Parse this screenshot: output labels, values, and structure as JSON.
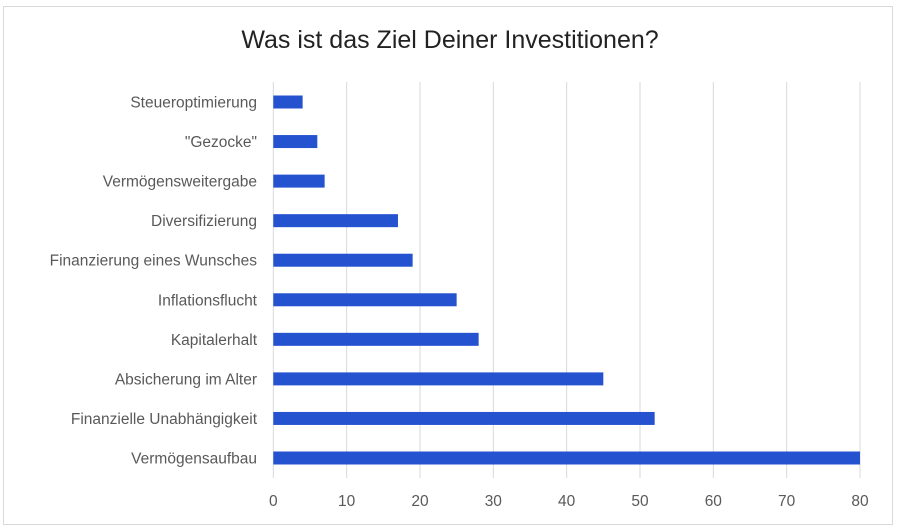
{
  "chart_data": {
    "type": "bar",
    "orientation": "horizontal",
    "title": "Was ist das Ziel Deiner Investitionen?",
    "categories": [
      "Steueroptimierung",
      "\"Gezocke\"",
      "Vermögensweitergabe",
      "Diversifizierung",
      "Finanzierung eines Wunsches",
      "Inflationsflucht",
      "Kapitalerhalt",
      "Absicherung im Alter",
      "Finanzielle Unabhängigkeit",
      "Vermögensaufbau"
    ],
    "values": [
      4,
      6,
      7,
      17,
      19,
      25,
      28,
      45,
      52,
      80
    ],
    "xlim": [
      0,
      80
    ],
    "xticks": [
      "0",
      "10",
      "20",
      "30",
      "40",
      "50",
      "60",
      "70",
      "80"
    ],
    "grid": "vertical",
    "legend": "none",
    "bar_color": "#2553cf",
    "xlabel": "",
    "ylabel": ""
  }
}
